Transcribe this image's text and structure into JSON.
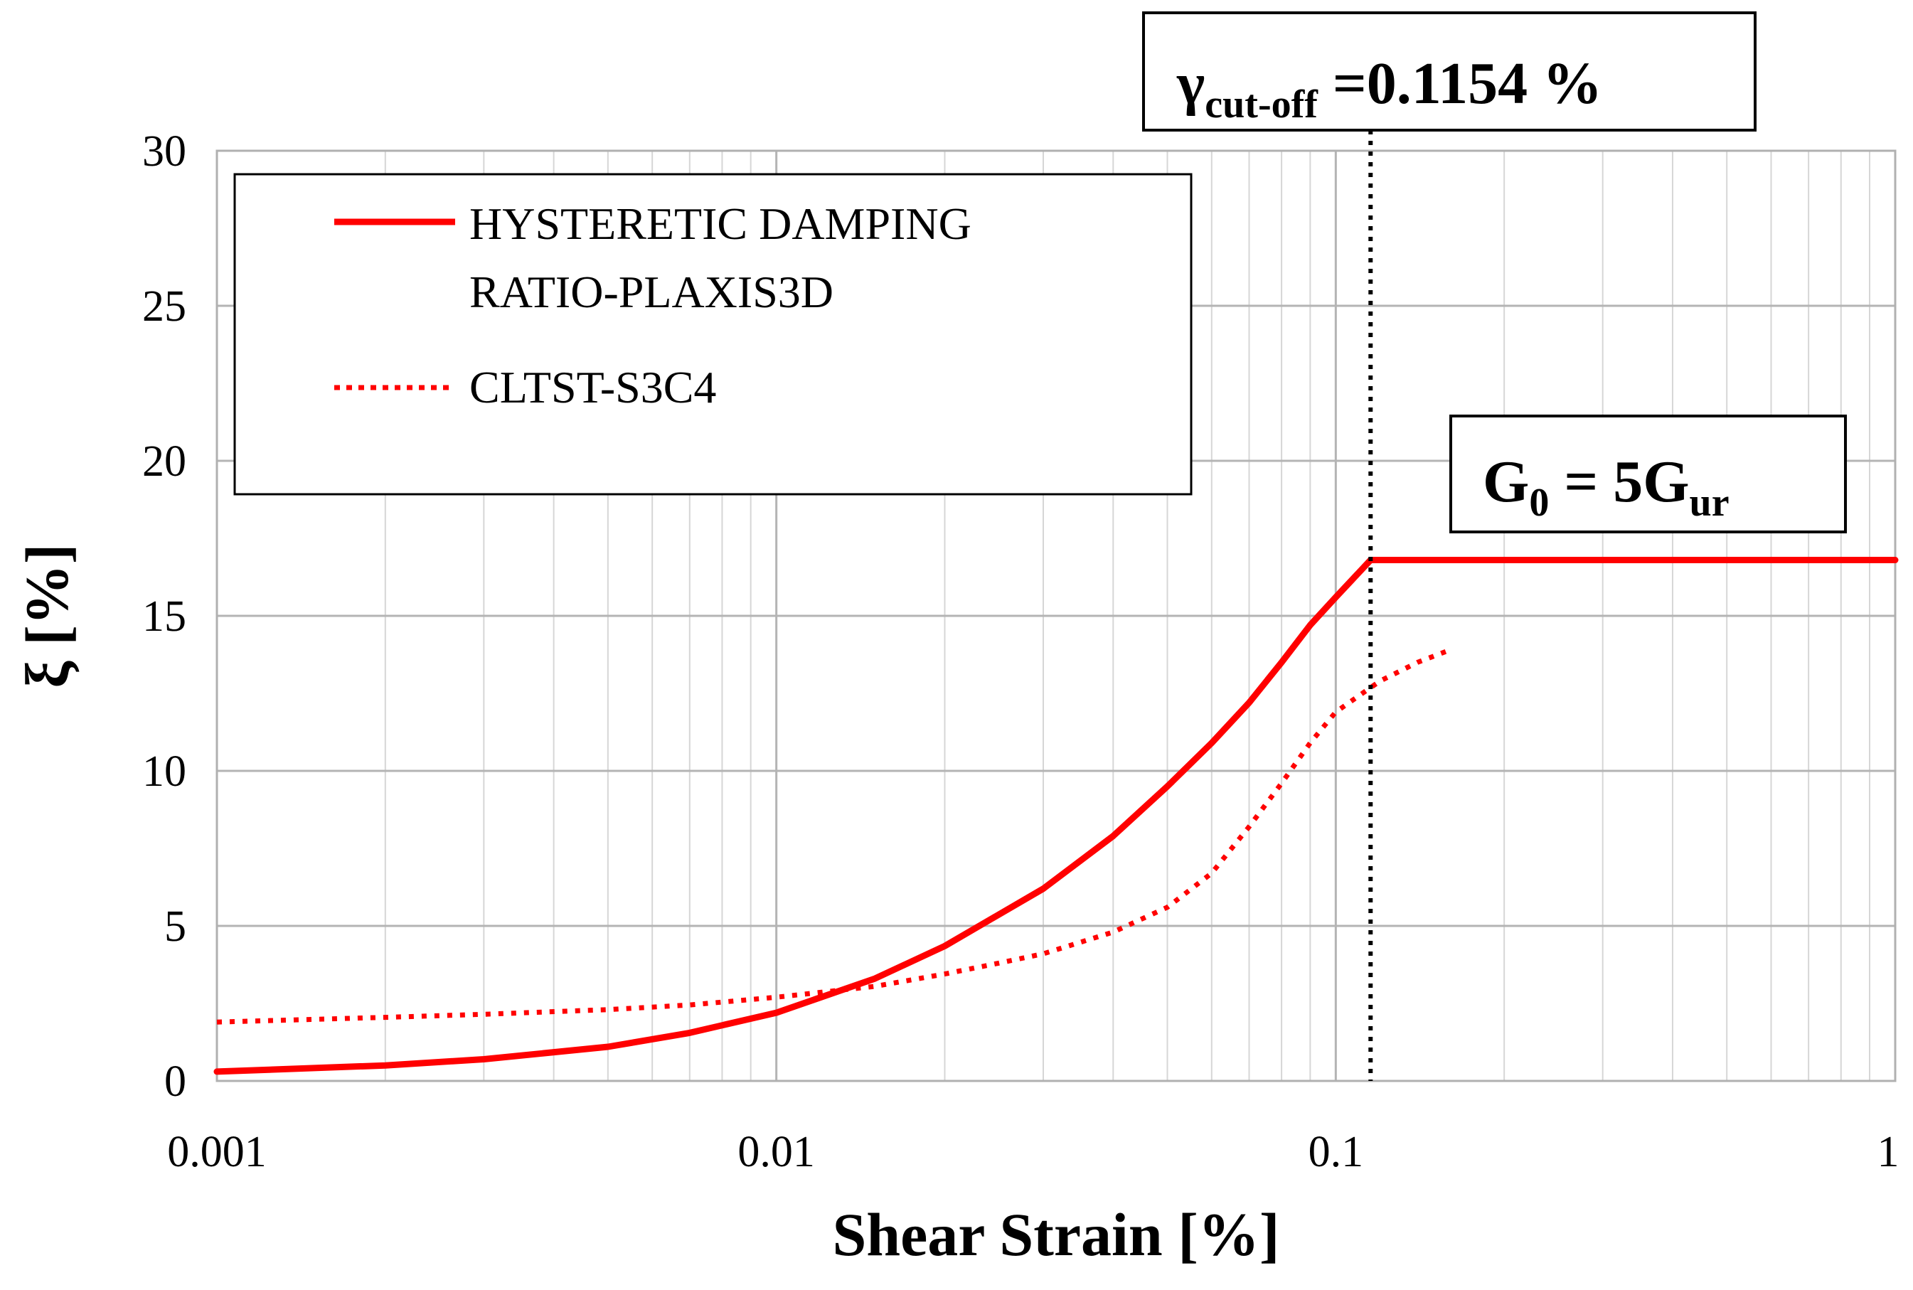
{
  "chart_data": {
    "type": "line",
    "xscale": "log",
    "xlabel": "Shear Strain [%]",
    "ylabel": "ξ [%]",
    "xlim": [
      0.001,
      1
    ],
    "ylim": [
      0,
      30
    ],
    "grid": true,
    "x_ticks": [
      0.001,
      0.01,
      0.1,
      1
    ],
    "x_tick_labels": [
      "0.001",
      "0.01",
      "0.1",
      "1"
    ],
    "y_ticks": [
      0,
      5,
      10,
      15,
      20,
      25,
      30
    ],
    "y_tick_labels": [
      "0",
      "5",
      "10",
      "15",
      "20",
      "25",
      "30"
    ],
    "legend_position": "top-left",
    "series": [
      {
        "name": "HYSTERETIC DAMPING RATIO-PLAXIS3D",
        "legend_lines": [
          "HYSTERETIC DAMPING",
          "RATIO-PLAXIS3D"
        ],
        "style": "solid",
        "color": "#ff0000",
        "x": [
          0.001,
          0.002,
          0.003,
          0.005,
          0.007,
          0.01,
          0.015,
          0.02,
          0.03,
          0.04,
          0.05,
          0.06,
          0.07,
          0.08,
          0.09,
          0.1,
          0.1154,
          0.2,
          0.5,
          1
        ],
        "y": [
          0.3,
          0.5,
          0.7,
          1.1,
          1.55,
          2.2,
          3.3,
          4.35,
          6.2,
          7.9,
          9.5,
          10.9,
          12.2,
          13.5,
          14.7,
          15.6,
          16.8,
          16.8,
          16.8,
          16.8
        ]
      },
      {
        "name": "CLTST-S3C4",
        "legend_lines": [
          "CLTST-S3C4"
        ],
        "style": "dotted",
        "color": "#ff0000",
        "x": [
          0.001,
          0.002,
          0.003,
          0.005,
          0.007,
          0.01,
          0.015,
          0.02,
          0.025,
          0.03,
          0.04,
          0.05,
          0.06,
          0.07,
          0.08,
          0.09,
          0.1,
          0.12,
          0.14,
          0.16
        ],
        "y": [
          1.9,
          2.05,
          2.15,
          2.3,
          2.45,
          2.7,
          3.05,
          3.45,
          3.8,
          4.1,
          4.8,
          5.6,
          6.7,
          8.2,
          9.6,
          10.9,
          11.9,
          12.9,
          13.5,
          13.9
        ]
      }
    ],
    "annotations": {
      "cutoff": {
        "x": 0.1154,
        "gamma_symbol": "γ",
        "subscript": "cut-off",
        "value_text": " =0.1154 %"
      },
      "g0": {
        "g_main": "G",
        "g_sub": "0",
        "mid": " = 5G",
        "ur_sub": "ur"
      }
    }
  }
}
